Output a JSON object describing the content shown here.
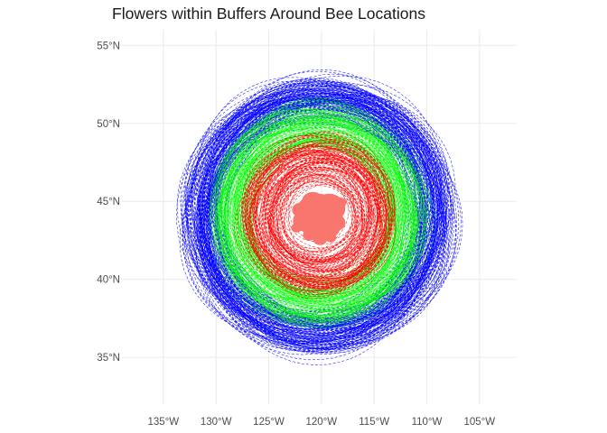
{
  "title": "Flowers within Buffers Around Bee Locations",
  "x_axis": {
    "unit": "longitude",
    "ticks": [
      {
        "value": -135,
        "label": "135°W"
      },
      {
        "value": -130,
        "label": "130°W"
      },
      {
        "value": -125,
        "label": "125°W"
      },
      {
        "value": -120,
        "label": "120°W"
      },
      {
        "value": -115,
        "label": "115°W"
      },
      {
        "value": -110,
        "label": "110°W"
      },
      {
        "value": -105,
        "label": "105°W"
      }
    ]
  },
  "y_axis": {
    "unit": "latitude",
    "ticks": [
      {
        "value": 35,
        "label": "35°N"
      },
      {
        "value": 40,
        "label": "40°N"
      },
      {
        "value": 45,
        "label": "45°N"
      },
      {
        "value": 50,
        "label": "50°N"
      },
      {
        "value": 55,
        "label": "55°N"
      }
    ]
  },
  "chart_data": {
    "type": "map",
    "grid": true,
    "legend": "none",
    "lon_range": [
      -138.5,
      -102.5
    ],
    "lat_range": [
      32,
      56
    ],
    "center": {
      "lon": -120.3,
      "lat": 44.1
    },
    "layers": [
      {
        "color": "#0000ff",
        "style": "dashed",
        "radius_deg": [
          9.5,
          12.5
        ]
      },
      {
        "color": "#00ff00",
        "style": "dashed",
        "radius_deg": [
          6.5,
          10
        ]
      },
      {
        "color": "#ff0000",
        "style": "dashed",
        "radius_deg": [
          3,
          7
        ]
      },
      {
        "color": "#f8766d",
        "style": "filled",
        "radius_deg": [
          0,
          2.5
        ]
      }
    ]
  }
}
